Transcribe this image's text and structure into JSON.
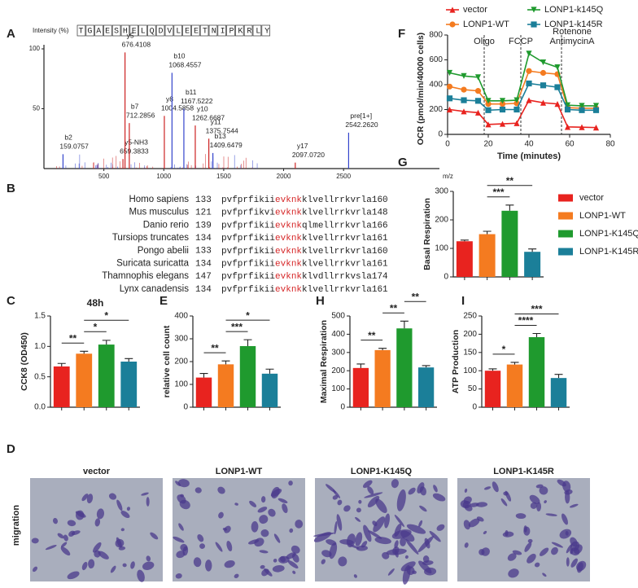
{
  "panel_labels": [
    "A",
    "B",
    "C",
    "D",
    "E",
    "F",
    "G",
    "H",
    "I"
  ],
  "alignment": [
    {
      "species": "Homo sapiens",
      "start": 133,
      "pre": "pvfprfikii",
      "motif": "evknk",
      "post": "klvellrrkvrla",
      "end": 160
    },
    {
      "species": "Mus musculus",
      "start": 121,
      "pre": "pvfprfikvi",
      "motif": "evknk",
      "post": "klvellrrkvrla",
      "end": 148
    },
    {
      "species": "Danio rerio",
      "start": 139,
      "pre": "pvfprfikii",
      "motif": "evknk",
      "post": "qlmellrrkvrla",
      "end": 166
    },
    {
      "species": "Tursiops truncates",
      "start": 134,
      "pre": "pvfprfikii",
      "motif": "evknk",
      "post": "klvellrrkvrla",
      "end": 161
    },
    {
      "species": "Pongo abelii",
      "start": 133,
      "pre": "pvfprfikii",
      "motif": "evknk",
      "post": "klvellrrkvrla",
      "end": 160
    },
    {
      "species": "Suricata suricatta",
      "start": 134,
      "pre": "pvfprfikii",
      "motif": "evknk",
      "post": "klvellrrkvrla",
      "end": 161
    },
    {
      "species": "Thamnophis elegans",
      "start": 147,
      "pre": "pvfprfikii",
      "motif": "evknk",
      "post": "klvdllrrkvsla",
      "end": 174
    },
    {
      "species": "Lynx canadensis",
      "start": 134,
      "pre": "pvfprfikii",
      "motif": "evknk",
      "post": "klvellrrkvrla",
      "end": 161
    }
  ],
  "migration": {
    "ylabel": "migration",
    "panels": [
      "vector",
      "LONP1-WT",
      "LONP1-K145Q",
      "LONP1-K145R"
    ]
  },
  "chart_data": [
    {
      "type": "spectrum",
      "ylabel": "Intensity (%)",
      "sequence": "TGAESHELQDVLEETNIPKRLY",
      "xlabel": "m/z",
      "ions": [
        "b2",
        "y5-NH3",
        "y5",
        "b7",
        "y8",
        "b10",
        "b11",
        "y10",
        "y11",
        "b13",
        "y17",
        "pre[1+]"
      ],
      "x": [
        159.0757,
        659.3833,
        676.4108,
        712.2856,
        1004.5858,
        1068.4557,
        1167.5222,
        1262.6687,
        1375.7544,
        1409.6479,
        2097.072,
        2542.262
      ],
      "x_labels": [
        "159.0757",
        "659.3833",
        "676.4108",
        "712.2856",
        "1004.5858",
        "1068.4557",
        "1167.5222",
        "1262.6687",
        "1375.7544",
        "1409.6479",
        "2097.0720",
        "2542.2620"
      ],
      "values": [
        12,
        8,
        97,
        38,
        44,
        80,
        50,
        36,
        25,
        13,
        5,
        30
      ],
      "colors": [
        "#3344cc",
        "#cc2222",
        "#cc2222",
        "#cc2222",
        "#cc2222",
        "#3344cc",
        "#3344cc",
        "#cc2222",
        "#cc2222",
        "#3344cc",
        "#cc2222",
        "#3344cc"
      ],
      "xlim": [
        0,
        3300
      ],
      "xticks": [
        500,
        1000,
        1500,
        2000,
        2500
      ],
      "ylim": [
        0,
        100
      ],
      "yticks": [
        50,
        100
      ]
    },
    {
      "type": "line",
      "xlabel": "Time (minutes)",
      "ylabel": "OCR (pmol/min/40000 cells)",
      "x": [
        1,
        8,
        15,
        20,
        27,
        34,
        40,
        47,
        54,
        59,
        66,
        73
      ],
      "series": [
        {
          "name": "vector",
          "color": "#e8231f",
          "marker": "triangle-up",
          "values": [
            200,
            185,
            175,
            80,
            85,
            90,
            275,
            255,
            245,
            60,
            58,
            55
          ]
        },
        {
          "name": "LONP1-WT",
          "color": "#f47b20",
          "marker": "circle",
          "values": [
            385,
            360,
            350,
            245,
            245,
            250,
            510,
            495,
            485,
            215,
            210,
            210
          ]
        },
        {
          "name": "LONP1-k145Q",
          "color": "#1f9a2e",
          "marker": "triangle-down",
          "values": [
            495,
            470,
            460,
            270,
            270,
            275,
            650,
            580,
            540,
            235,
            230,
            230
          ]
        },
        {
          "name": "LONP1-k145R",
          "color": "#1b7f99",
          "marker": "square",
          "values": [
            290,
            275,
            270,
            195,
            200,
            200,
            410,
            395,
            380,
            200,
            195,
            195
          ]
        }
      ],
      "annotations": [
        {
          "x": 18,
          "text": [
            "Oligo"
          ]
        },
        {
          "x": 36,
          "text": [
            "FCCP"
          ]
        },
        {
          "x": 56,
          "text": [
            "Rotenone",
            "AntimycinA"
          ]
        }
      ],
      "xlim": [
        0,
        80
      ],
      "xticks": [
        0,
        20,
        40,
        60,
        80
      ],
      "ylim": [
        0,
        800
      ],
      "yticks": [
        0,
        200,
        400,
        600,
        800
      ]
    },
    {
      "type": "bar",
      "ylabel": "Basal Respiration",
      "categories": [
        null,
        null,
        null,
        null
      ],
      "legend": [
        "vector",
        "LONP1-WT",
        "LONP1-K145Q",
        "LONP1-K145R"
      ],
      "values": [
        125,
        150,
        232,
        88
      ],
      "errors": [
        4,
        10,
        20,
        10
      ],
      "colors": [
        "#e8231f",
        "#f47b20",
        "#1f9a2e",
        "#1b7f99"
      ],
      "significance": [
        {
          "pair": [
            1,
            2
          ],
          "label": "***"
        },
        {
          "pair": [
            1,
            3
          ],
          "label": "**"
        }
      ],
      "ylim": [
        0,
        300
      ],
      "yticks": [
        0,
        100,
        200,
        300
      ]
    },
    {
      "type": "bar",
      "title": "48h",
      "ylabel": "CCK8 (OD450)",
      "categories": [
        null,
        null,
        null,
        null
      ],
      "values": [
        0.67,
        0.88,
        1.03,
        0.75
      ],
      "errors": [
        0.05,
        0.04,
        0.07,
        0.05
      ],
      "colors": [
        "#e8231f",
        "#f47b20",
        "#1f9a2e",
        "#1b7f99"
      ],
      "significance": [
        {
          "pair": [
            0,
            1
          ],
          "label": "**"
        },
        {
          "pair": [
            1,
            2
          ],
          "label": "*"
        },
        {
          "pair": [
            1,
            3
          ],
          "label": "*"
        }
      ],
      "ylim": [
        0,
        1.5
      ],
      "yticks": [
        {
          "value": 0,
          "label": "0.0"
        },
        {
          "value": 0.5,
          "label": "0.5"
        },
        {
          "value": 1,
          "label": "1.0"
        },
        {
          "value": 1.5,
          "label": "1.5"
        }
      ]
    },
    {
      "type": "bar",
      "ylabel": "relative cell count",
      "categories": [
        null,
        null,
        null,
        null
      ],
      "values": [
        130,
        188,
        268,
        147
      ],
      "errors": [
        18,
        15,
        28,
        20
      ],
      "colors": [
        "#e8231f",
        "#f47b20",
        "#1f9a2e",
        "#1b7f99"
      ],
      "significance": [
        {
          "pair": [
            0,
            1
          ],
          "label": "**"
        },
        {
          "pair": [
            1,
            2
          ],
          "label": "***"
        },
        {
          "pair": [
            1,
            3
          ],
          "label": "*"
        }
      ],
      "ylim": [
        0,
        400
      ],
      "yticks": [
        0,
        100,
        200,
        300,
        400
      ]
    },
    {
      "type": "bar",
      "ylabel": "Maximal Respiration",
      "categories": [
        null,
        null,
        null,
        null
      ],
      "values": [
        215,
        313,
        432,
        218
      ],
      "errors": [
        22,
        10,
        40,
        10
      ],
      "colors": [
        "#e8231f",
        "#f47b20",
        "#1f9a2e",
        "#1b7f99"
      ],
      "significance": [
        {
          "pair": [
            0,
            1
          ],
          "label": "**"
        },
        {
          "pair": [
            1,
            2
          ],
          "label": "**"
        },
        {
          "pair": [
            2,
            3
          ],
          "label": "**"
        }
      ],
      "ylim": [
        0,
        500
      ],
      "yticks": [
        0,
        100,
        200,
        300,
        400,
        500
      ]
    },
    {
      "type": "bar",
      "ylabel": "ATP Production",
      "categories": [
        null,
        null,
        null,
        null
      ],
      "values": [
        100,
        117,
        192,
        80
      ],
      "errors": [
        5,
        6,
        10,
        10
      ],
      "colors": [
        "#e8231f",
        "#f47b20",
        "#1f9a2e",
        "#1b7f99"
      ],
      "significance": [
        {
          "pair": [
            0,
            1
          ],
          "label": "*"
        },
        {
          "pair": [
            1,
            2
          ],
          "label": "****"
        },
        {
          "pair": [
            1,
            3
          ],
          "label": "***"
        }
      ],
      "ylim": [
        0,
        250
      ],
      "yticks": [
        0,
        50,
        100,
        150,
        200,
        250
      ]
    }
  ]
}
